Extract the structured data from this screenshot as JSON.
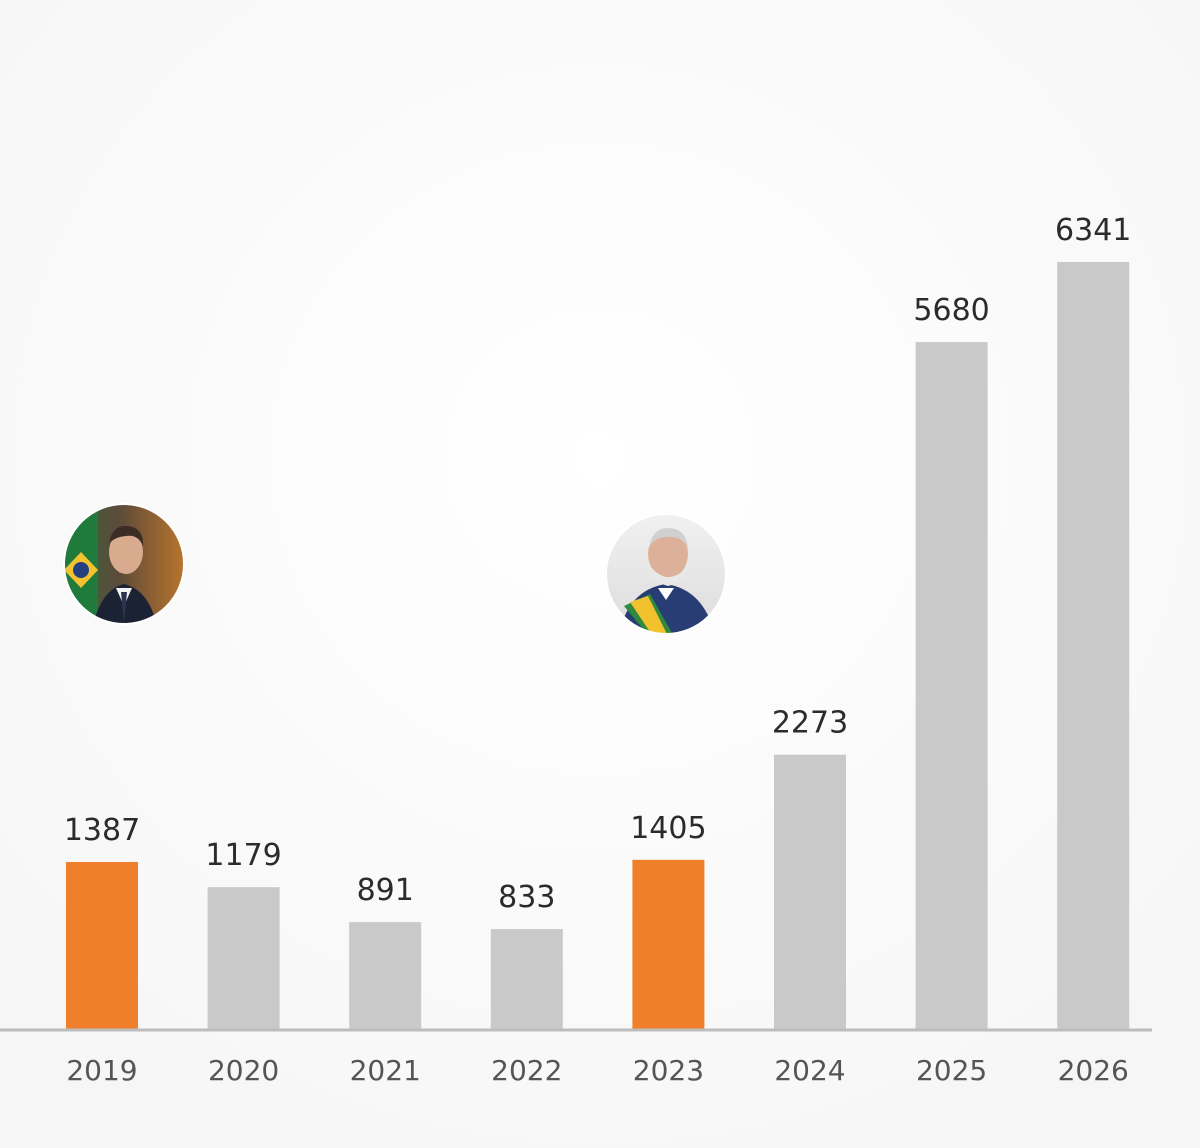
{
  "chart_data": {
    "type": "bar",
    "title": "",
    "xlabel": "",
    "ylabel": "",
    "categories": [
      "2019",
      "2020",
      "2021",
      "2022",
      "2023",
      "2024",
      "2025",
      "2026"
    ],
    "values": [
      1387,
      1179,
      891,
      833,
      1405,
      2273,
      5680,
      6341
    ],
    "ylim": [
      0,
      6500
    ],
    "grid": false,
    "highlighted_categories": [
      "2019",
      "2023"
    ],
    "colors": {
      "default_bar": "#c9c9c9",
      "highlight_bar": "#ef7f2a",
      "axis": "#bdbdbd",
      "value_text": "#2b2b2b",
      "tick_text": "#555555"
    },
    "annotations": [
      {
        "type": "portrait-photo",
        "name": "portrait-2019-icon",
        "category": "2019"
      },
      {
        "type": "portrait-photo",
        "name": "portrait-2023-icon",
        "category": "2023"
      }
    ]
  }
}
